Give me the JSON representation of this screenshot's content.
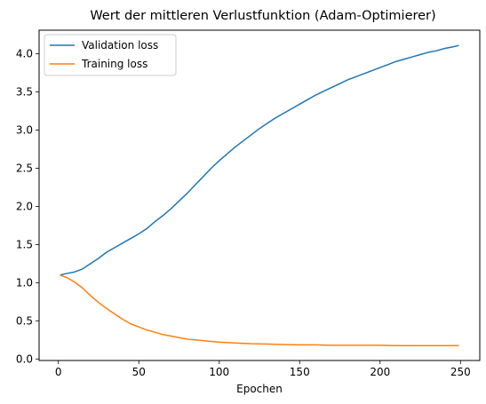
{
  "chart_data": {
    "type": "line",
    "title": "Wert der mittleren Verlustfunktion (Adam-Optimierer)",
    "xlabel": "Epochen",
    "ylabel": "",
    "xlim": [
      -12,
      262
    ],
    "ylim": [
      -0.02,
      4.31
    ],
    "xticks": [
      0,
      50,
      100,
      150,
      200,
      250
    ],
    "yticks": [
      0.0,
      0.5,
      1.0,
      1.5,
      2.0,
      2.5,
      3.0,
      3.5,
      4.0
    ],
    "grid": false,
    "legend_position": "top-left",
    "series": [
      {
        "name": "Validation loss",
        "color": "#1f77b4",
        "x": [
          1,
          5,
          10,
          15,
          20,
          25,
          30,
          35,
          40,
          45,
          50,
          55,
          60,
          65,
          70,
          75,
          80,
          85,
          90,
          95,
          100,
          105,
          110,
          115,
          120,
          125,
          130,
          135,
          140,
          145,
          150,
          155,
          160,
          165,
          170,
          175,
          180,
          185,
          190,
          195,
          200,
          205,
          210,
          215,
          220,
          225,
          230,
          235,
          240,
          245,
          249
        ],
        "y": [
          1.1,
          1.12,
          1.14,
          1.18,
          1.25,
          1.32,
          1.4,
          1.46,
          1.52,
          1.58,
          1.64,
          1.71,
          1.8,
          1.88,
          1.97,
          2.07,
          2.17,
          2.28,
          2.39,
          2.5,
          2.6,
          2.69,
          2.78,
          2.86,
          2.94,
          3.02,
          3.09,
          3.16,
          3.22,
          3.28,
          3.34,
          3.4,
          3.46,
          3.51,
          3.56,
          3.61,
          3.66,
          3.7,
          3.74,
          3.78,
          3.82,
          3.86,
          3.9,
          3.93,
          3.96,
          3.99,
          4.02,
          4.04,
          4.07,
          4.09,
          4.11
        ]
      },
      {
        "name": "Training loss",
        "color": "#ff7f0e",
        "x": [
          1,
          5,
          10,
          15,
          20,
          25,
          30,
          35,
          40,
          45,
          50,
          55,
          60,
          65,
          70,
          75,
          80,
          85,
          90,
          95,
          100,
          110,
          120,
          130,
          140,
          150,
          160,
          170,
          180,
          190,
          200,
          210,
          220,
          230,
          240,
          249
        ],
        "y": [
          1.1,
          1.07,
          1.01,
          0.93,
          0.83,
          0.74,
          0.66,
          0.59,
          0.52,
          0.46,
          0.42,
          0.38,
          0.35,
          0.32,
          0.3,
          0.28,
          0.26,
          0.25,
          0.24,
          0.23,
          0.22,
          0.21,
          0.2,
          0.195,
          0.19,
          0.185,
          0.185,
          0.18,
          0.18,
          0.18,
          0.18,
          0.175,
          0.175,
          0.175,
          0.175,
          0.175
        ]
      }
    ]
  }
}
